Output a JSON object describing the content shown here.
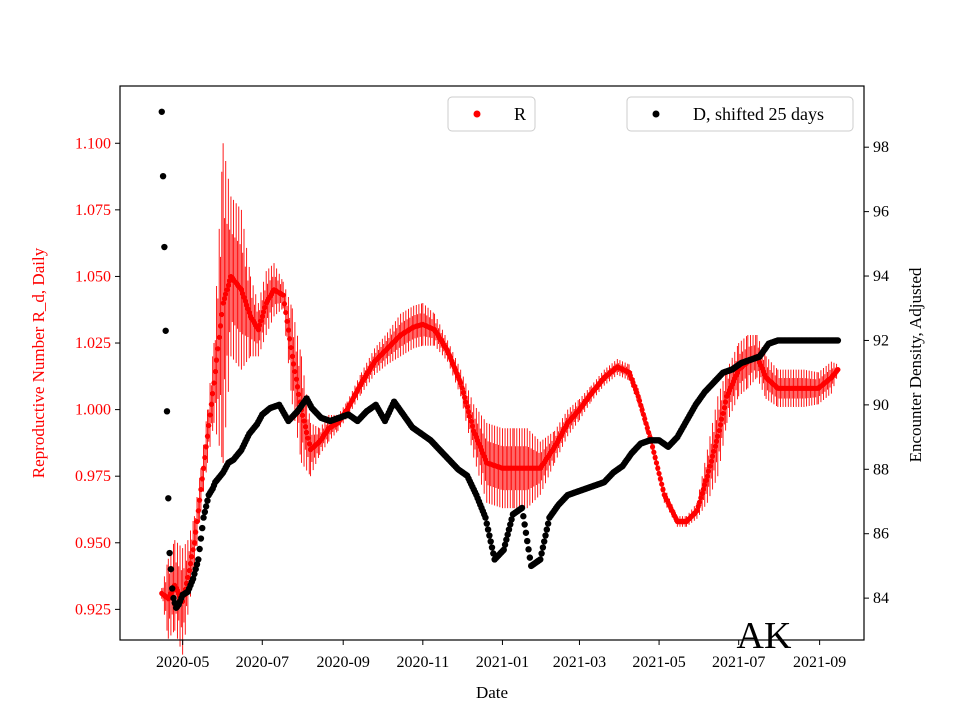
{
  "chart_data": {
    "type": "scatter",
    "xlabel": "Date",
    "ylabel_left": "Reproductive Number R_d, Daily",
    "ylabel_right": "Encounter Density, Adjusted",
    "annotation": "AK",
    "x_range": [
      "2020-03-14",
      "2021-10-05"
    ],
    "ylim_left": [
      0.9135,
      1.1215
    ],
    "ylim_right": [
      82.7,
      99.9
    ],
    "x_ticks": [
      "2020-05",
      "2020-07",
      "2020-09",
      "2020-11",
      "2021-01",
      "2021-03",
      "2021-05",
      "2021-07",
      "2021-09"
    ],
    "x_tick_dates": [
      "2020-05-01",
      "2020-07-01",
      "2020-09-01",
      "2020-11-01",
      "2021-01-01",
      "2021-03-01",
      "2021-05-01",
      "2021-07-01",
      "2021-09-01"
    ],
    "y_ticks_left": [
      "0.925",
      "0.950",
      "0.975",
      "1.000",
      "1.025",
      "1.050",
      "1.075",
      "1.100"
    ],
    "y_tick_values_left": [
      0.925,
      0.95,
      0.975,
      1.0,
      1.025,
      1.05,
      1.075,
      1.1
    ],
    "y_ticks_right": [
      "84",
      "86",
      "88",
      "90",
      "92",
      "94",
      "96",
      "98"
    ],
    "y_tick_values_right": [
      84,
      86,
      88,
      90,
      92,
      94,
      96,
      98
    ],
    "legend_left": {
      "label": "R",
      "color": "#ff0000",
      "placement": "upper-center"
    },
    "legend_right": {
      "label": "D, shifted 25 days",
      "color": "#000000",
      "placement": "upper-right"
    },
    "colors": {
      "R": "#ff0000",
      "D": "#000000"
    },
    "grid": false,
    "series": [
      {
        "name": "R",
        "axis": "left",
        "marker": "point with error bars",
        "x": [
          "2020-04-15",
          "2020-04-20",
          "2020-04-25",
          "2020-05-01",
          "2020-05-05",
          "2020-05-10",
          "2020-05-15",
          "2020-05-20",
          "2020-05-25",
          "2020-06-01",
          "2020-06-07",
          "2020-06-15",
          "2020-06-22",
          "2020-06-28",
          "2020-07-04",
          "2020-07-10",
          "2020-07-17",
          "2020-07-24",
          "2020-07-31",
          "2020-08-07",
          "2020-08-14",
          "2020-08-21",
          "2020-08-28",
          "2020-09-04",
          "2020-09-15",
          "2020-09-25",
          "2020-10-05",
          "2020-10-15",
          "2020-10-25",
          "2020-11-01",
          "2020-11-10",
          "2020-11-20",
          "2020-11-30",
          "2020-12-10",
          "2020-12-20",
          "2021-01-01",
          "2021-01-10",
          "2021-01-20",
          "2021-01-30",
          "2021-02-10",
          "2021-02-20",
          "2021-03-01",
          "2021-03-10",
          "2021-03-20",
          "2021-03-30",
          "2021-04-08",
          "2021-04-15",
          "2021-04-25",
          "2021-05-05",
          "2021-05-15",
          "2021-05-22",
          "2021-05-30",
          "2021-06-07",
          "2021-06-15",
          "2021-06-22",
          "2021-07-01",
          "2021-07-08",
          "2021-07-15",
          "2021-07-22",
          "2021-07-31",
          "2021-08-10",
          "2021-08-20",
          "2021-08-31",
          "2021-09-10",
          "2021-09-15"
        ],
        "y": [
          0.931,
          0.929,
          0.934,
          0.928,
          0.937,
          0.95,
          0.97,
          0.99,
          1.01,
          1.04,
          1.05,
          1.045,
          1.035,
          1.03,
          1.04,
          1.045,
          1.043,
          1.02,
          1.0,
          0.985,
          0.988,
          0.993,
          0.995,
          1.0,
          1.01,
          1.018,
          1.023,
          1.028,
          1.031,
          1.032,
          1.03,
          1.022,
          1.01,
          0.992,
          0.98,
          0.978,
          0.978,
          0.978,
          0.978,
          0.986,
          0.995,
          1.0,
          1.006,
          1.012,
          1.016,
          1.014,
          1.005,
          0.988,
          0.968,
          0.958,
          0.958,
          0.962,
          0.975,
          0.99,
          1.005,
          1.015,
          1.018,
          1.02,
          1.012,
          1.008,
          1.008,
          1.008,
          1.008,
          1.012,
          1.015
        ],
        "error": [
          0.002,
          0.015,
          0.017,
          0.02,
          0.014,
          0.01,
          0.008,
          0.01,
          0.015,
          0.06,
          0.03,
          0.03,
          0.015,
          0.01,
          0.012,
          0.01,
          0.005,
          0.018,
          0.02,
          0.01,
          0.005,
          0.005,
          0.003,
          0.003,
          0.004,
          0.005,
          0.006,
          0.008,
          0.008,
          0.008,
          0.006,
          0.004,
          0.005,
          0.01,
          0.015,
          0.015,
          0.015,
          0.015,
          0.01,
          0.006,
          0.005,
          0.004,
          0.003,
          0.003,
          0.003,
          0.003,
          0.003,
          0.003,
          0.003,
          0.002,
          0.002,
          0.003,
          0.01,
          0.015,
          0.01,
          0.01,
          0.01,
          0.008,
          0.008,
          0.007,
          0.007,
          0.007,
          0.006,
          0.006,
          0.002
        ]
      },
      {
        "name": "D, shifted 25 days",
        "axis": "right",
        "marker": "point",
        "x": [
          "2020-04-15",
          "2020-04-16",
          "2020-04-17",
          "2020-04-18",
          "2020-04-19",
          "2020-04-20",
          "2020-04-21",
          "2020-04-22",
          "2020-04-23",
          "2020-04-24",
          "2020-04-26",
          "2020-04-28",
          "2020-05-01",
          "2020-05-05",
          "2020-05-09",
          "2020-05-13",
          "2020-05-17",
          "2020-05-21",
          "2020-05-24",
          "2020-05-26",
          "2020-06-01",
          "2020-06-05",
          "2020-06-09",
          "2020-06-15",
          "2020-06-21",
          "2020-06-27",
          "2020-07-01",
          "2020-07-07",
          "2020-07-14",
          "2020-07-21",
          "2020-07-28",
          "2020-08-04",
          "2020-08-08",
          "2020-08-15",
          "2020-08-22",
          "2020-08-29",
          "2020-09-05",
          "2020-09-12",
          "2020-09-19",
          "2020-09-26",
          "2020-10-03",
          "2020-10-10",
          "2020-10-17",
          "2020-10-24",
          "2020-10-31",
          "2020-11-07",
          "2020-11-14",
          "2020-11-21",
          "2020-11-28",
          "2020-12-05",
          "2020-12-12",
          "2020-12-19",
          "2020-12-26",
          "2021-01-02",
          "2021-01-09",
          "2021-01-16",
          "2021-01-23",
          "2021-01-30",
          "2021-02-06",
          "2021-02-13",
          "2021-02-20",
          "2021-02-27",
          "2021-03-06",
          "2021-03-13",
          "2021-03-20",
          "2021-03-27",
          "2021-04-03",
          "2021-04-10",
          "2021-04-17",
          "2021-04-24",
          "2021-05-01",
          "2021-05-08",
          "2021-05-15",
          "2021-05-22",
          "2021-05-29",
          "2021-06-05",
          "2021-06-12",
          "2021-06-19",
          "2021-06-26",
          "2021-07-03",
          "2021-07-10",
          "2021-07-17",
          "2021-07-24",
          "2021-07-31",
          "2021-08-07",
          "2021-08-14",
          "2021-08-21",
          "2021-08-28",
          "2021-09-04",
          "2021-09-11",
          "2021-09-15"
        ],
        "y": [
          99.1,
          97.1,
          94.9,
          92.3,
          89.8,
          87.1,
          85.4,
          84.9,
          84.3,
          84.0,
          83.7,
          83.8,
          84.1,
          84.2,
          84.6,
          85.2,
          86.5,
          87.2,
          87.4,
          87.6,
          87.9,
          88.2,
          88.3,
          88.6,
          89.1,
          89.4,
          89.7,
          89.9,
          90.0,
          89.5,
          89.8,
          90.2,
          89.9,
          89.6,
          89.5,
          89.6,
          89.7,
          89.5,
          89.8,
          90.0,
          89.5,
          90.1,
          89.7,
          89.3,
          89.1,
          88.9,
          88.6,
          88.3,
          88.0,
          87.8,
          87.2,
          86.5,
          85.2,
          85.5,
          86.6,
          86.8,
          85.0,
          85.2,
          86.5,
          86.9,
          87.2,
          87.3,
          87.4,
          87.5,
          87.6,
          87.9,
          88.1,
          88.5,
          88.8,
          88.9,
          88.9,
          88.7,
          89.0,
          89.5,
          90.0,
          90.4,
          90.7,
          91.0,
          91.1,
          91.3,
          91.4,
          91.5,
          91.9,
          92.0,
          92.0,
          92.0,
          92.0,
          92.0,
          92.0,
          92.0,
          92.0
        ]
      }
    ]
  }
}
